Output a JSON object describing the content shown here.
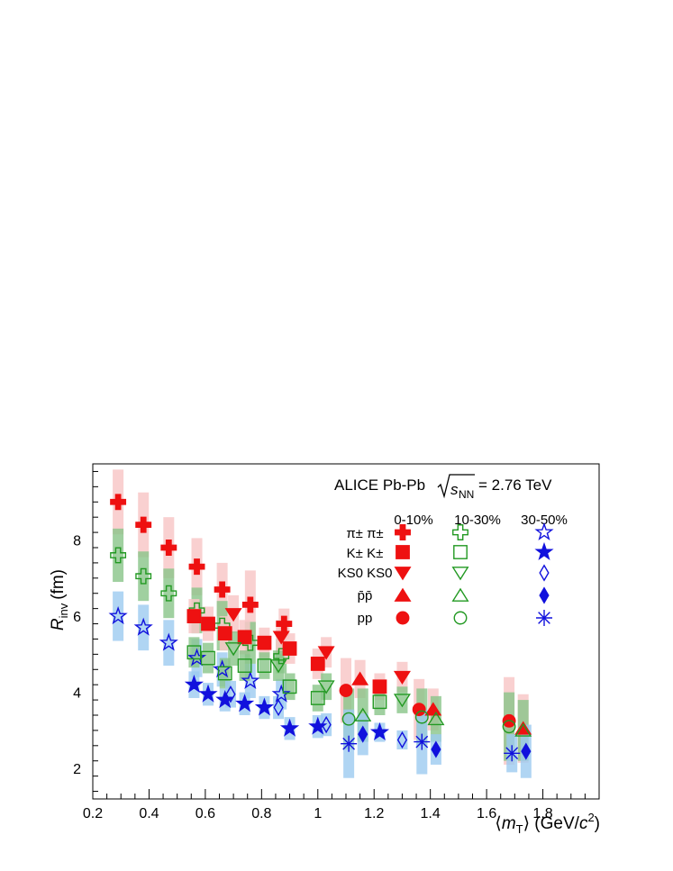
{
  "chart_data": {
    "type": "scatter",
    "title": "ALICE Pb-Pb",
    "energy_label": "= 2.76 TeV",
    "energy_symbol": "s",
    "energy_subscript": "NN",
    "ylabel": "R",
    "ylabel_sub": "inv",
    "ylabel_unit": "(fm)",
    "xlabel_pre": "⟨",
    "xlabel_var": "m",
    "xlabel_sub": "T",
    "xlabel_post": "⟩ (GeV/",
    "xlabel_c": "c",
    "xlabel_pow": "2",
    "xlabel_close": ")",
    "xlim": [
      0.2,
      2.0
    ],
    "ylim": [
      1.2,
      10.0
    ],
    "xticks": [
      0.2,
      0.4,
      0.6,
      0.8,
      1.0,
      1.2,
      1.4,
      1.6,
      1.8
    ],
    "xtick_labels": [
      "0.2",
      "0.4",
      "0.6",
      "0.8",
      "1",
      "1.2",
      "1.4",
      "1.6",
      "1.8"
    ],
    "yticks": [
      2,
      4,
      6,
      8
    ],
    "ytick_labels": [
      "2",
      "4",
      "6",
      "8"
    ],
    "legend_centralities": [
      "0-10%",
      "10-30%",
      "30-50%"
    ],
    "legend_rows": [
      {
        "label": "π± π±",
        "key": "pipi"
      },
      {
        "label": "K± K±",
        "key": "kk"
      },
      {
        "label": "KS0 KS0",
        "key": "k0k0"
      },
      {
        "label": "p̄p̄",
        "key": "pbarpbar"
      },
      {
        "label": "pp",
        "key": "pp"
      }
    ],
    "colors": {
      "cent0": "#ee1111",
      "cent1": "#229922",
      "cent2": "#1111dd",
      "band0": "#f8c8c8",
      "band1": "#88c488",
      "band2": "#9ccbf0"
    },
    "series": [
      {
        "name": "π± π± 0-10%",
        "species": "pipi",
        "centrality": 0,
        "x": [
          0.29,
          0.38,
          0.47,
          0.57,
          0.66,
          0.76,
          0.88
        ],
        "y": [
          9.0,
          8.4,
          7.8,
          7.3,
          6.7,
          6.3,
          5.8
        ],
        "sys": [
          0.85,
          0.85,
          0.8,
          0.75,
          0.7,
          0.9,
          0.4
        ]
      },
      {
        "name": "π± π± 10-30%",
        "species": "pipi",
        "centrality": 1,
        "x": [
          0.29,
          0.38,
          0.47,
          0.57,
          0.66,
          0.76,
          0.87
        ],
        "y": [
          7.6,
          7.05,
          6.6,
          6.15,
          5.75,
          5.3,
          4.95
        ],
        "sys": [
          0.7,
          0.65,
          0.65,
          0.6,
          0.65,
          0.55,
          0.45
        ]
      },
      {
        "name": "π± π± 30-50%",
        "species": "pipi",
        "centrality": 2,
        "x": [
          0.29,
          0.38,
          0.47,
          0.57,
          0.66,
          0.76,
          0.87
        ],
        "y": [
          6.0,
          5.7,
          5.3,
          4.9,
          4.6,
          4.3,
          3.95
        ],
        "sys": [
          0.65,
          0.6,
          0.6,
          0.5,
          0.45,
          0.45,
          0.4
        ]
      },
      {
        "name": "K± K± 0-10%",
        "species": "kk",
        "centrality": 0,
        "x": [
          0.56,
          0.61,
          0.67,
          0.74,
          0.81,
          0.9,
          1.0,
          1.22
        ],
        "y": [
          6.0,
          5.8,
          5.55,
          5.45,
          5.3,
          5.15,
          4.75,
          4.15
        ],
        "sys": [
          0.45,
          0.45,
          0.45,
          0.45,
          0.4,
          0.4,
          0.4,
          0.35
        ]
      },
      {
        "name": "K± K± 10-30%",
        "species": "kk",
        "centrality": 1,
        "x": [
          0.56,
          0.61,
          0.67,
          0.74,
          0.81,
          0.9,
          1.0,
          1.22
        ],
        "y": [
          5.05,
          4.9,
          4.5,
          4.7,
          4.7,
          4.15,
          3.85,
          3.75
        ],
        "sys": [
          0.4,
          0.4,
          0.4,
          0.4,
          0.35,
          0.35,
          0.35,
          0.35
        ]
      },
      {
        "name": "K± K± 30-50%",
        "species": "kk",
        "centrality": 2,
        "x": [
          0.56,
          0.61,
          0.67,
          0.74,
          0.81,
          0.9,
          1.0,
          1.22
        ],
        "y": [
          4.2,
          3.95,
          3.8,
          3.7,
          3.6,
          3.05,
          3.1,
          2.95
        ],
        "sys": [
          0.35,
          0.3,
          0.3,
          0.3,
          0.3,
          0.3,
          0.3,
          0.25
        ]
      },
      {
        "name": "KS0 KS0 0-10%",
        "species": "k0k0",
        "centrality": 0,
        "x": [
          0.7,
          0.87,
          1.03,
          1.3
        ],
        "y": [
          6.05,
          5.45,
          5.05,
          4.4
        ],
        "sys": [
          0.5,
          0.45,
          0.4,
          0.4
        ]
      },
      {
        "name": "KS0 KS0 10-30%",
        "species": "k0k0",
        "centrality": 1,
        "x": [
          0.7,
          0.86,
          1.03,
          1.3
        ],
        "y": [
          5.15,
          4.7,
          4.15,
          3.8
        ],
        "sys": [
          0.45,
          0.4,
          0.35,
          0.35
        ]
      },
      {
        "name": "KS0 KS0 30-50%",
        "species": "k0k0",
        "centrality": 2,
        "x": [
          0.69,
          0.86,
          1.03,
          1.3
        ],
        "y": [
          3.95,
          3.6,
          3.15,
          2.75
        ],
        "sys": [
          0.35,
          0.3,
          0.3,
          0.25
        ]
      },
      {
        "name": "p̄p̄ 0-10%",
        "species": "pbarpbar",
        "centrality": 0,
        "x": [
          1.15,
          1.41,
          1.73
        ],
        "y": [
          4.35,
          3.55,
          3.05
        ],
        "sys": [
          0.5,
          0.55,
          0.9
        ]
      },
      {
        "name": "p̄p̄ 10-30%",
        "species": "pbarpbar",
        "centrality": 1,
        "x": [
          1.16,
          1.42,
          1.73
        ],
        "y": [
          3.4,
          3.3,
          3.0
        ],
        "sys": [
          0.7,
          0.6,
          0.8
        ]
      },
      {
        "name": "p̄p̄ 30-50%",
        "species": "pbarpbar",
        "centrality": 2,
        "x": [
          1.16,
          1.42,
          1.74
        ],
        "y": [
          2.9,
          2.5,
          2.45
        ],
        "sys": [
          0.55,
          0.4,
          0.7
        ]
      },
      {
        "name": "pp 0-10%",
        "species": "pp",
        "centrality": 0,
        "x": [
          1.1,
          1.36,
          1.68
        ],
        "y": [
          4.05,
          3.55,
          3.25
        ],
        "sys": [
          0.85,
          0.8,
          1.15
        ]
      },
      {
        "name": "pp 10-30%",
        "species": "pp",
        "centrality": 1,
        "x": [
          1.11,
          1.37,
          1.68
        ],
        "y": [
          3.3,
          3.35,
          3.1
        ],
        "sys": [
          0.8,
          0.75,
          0.9
        ]
      },
      {
        "name": "pp 30-50%",
        "species": "pp",
        "centrality": 2,
        "x": [
          1.11,
          1.37,
          1.69
        ],
        "y": [
          2.65,
          2.7,
          2.4
        ],
        "sys": [
          0.9,
          0.85,
          0.5
        ]
      }
    ]
  }
}
